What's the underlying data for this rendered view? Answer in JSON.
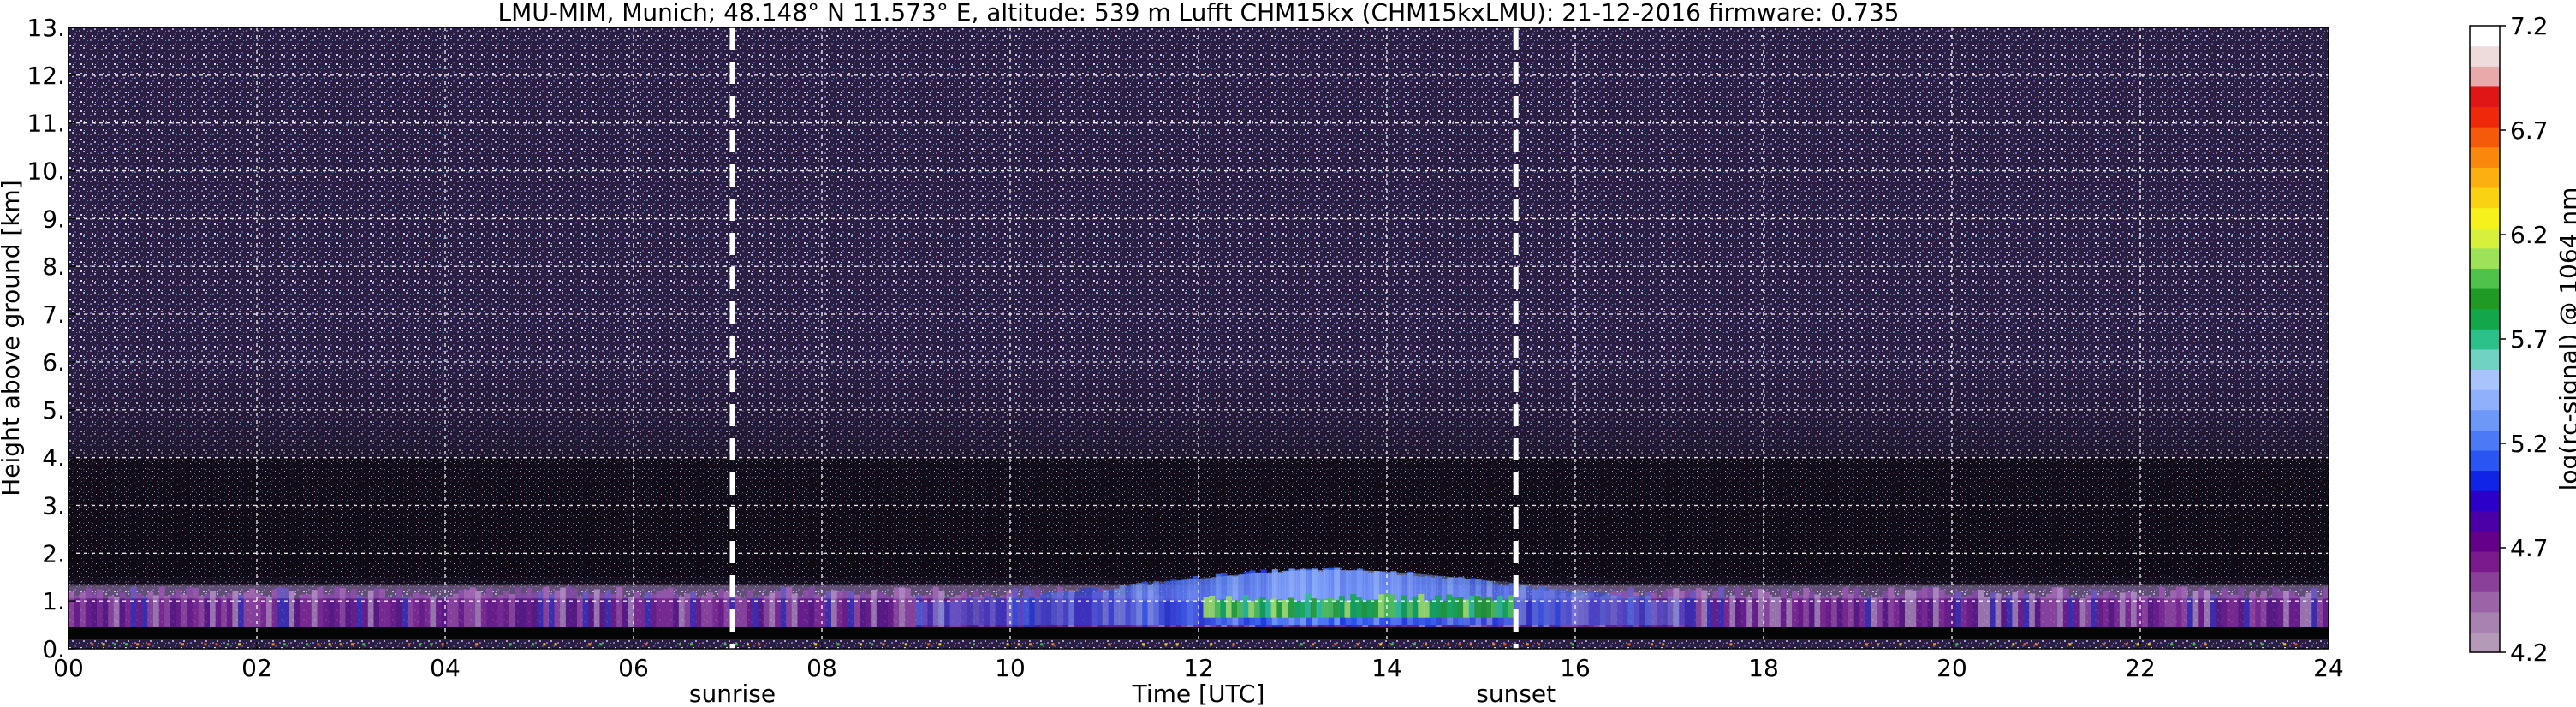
{
  "chart_data": {
    "type": "heatmap",
    "title": "LMU-MIM, Munich; 48.148° N 11.573° E, altitude: 539 m    Lufft CHM15kx (CHM15kxLMU): 21-12-2016    firmware: 0.735",
    "xlabel": "Time [UTC]",
    "ylabel": "Height above ground [km]",
    "xlim": [
      0,
      24
    ],
    "ylim": [
      0,
      13
    ],
    "x_ticks": [
      "00",
      "02",
      "04",
      "06",
      "08",
      "10",
      "12",
      "14",
      "16",
      "18",
      "20",
      "22",
      "24"
    ],
    "x_tick_values": [
      0,
      2,
      4,
      6,
      8,
      10,
      12,
      14,
      16,
      18,
      20,
      22,
      24
    ],
    "y_ticks": [
      "0.",
      "1.",
      "2.",
      "3.",
      "4.",
      "5.",
      "6.",
      "7.",
      "8.",
      "9.",
      "10.",
      "11.",
      "12.",
      "13."
    ],
    "y_tick_values": [
      0,
      1,
      2,
      3,
      4,
      5,
      6,
      7,
      8,
      9,
      10,
      11,
      12,
      13
    ],
    "grid": true,
    "annotations": [
      {
        "label": "sunrise",
        "x": 7.05
      },
      {
        "label": "sunset",
        "x": 15.37
      }
    ],
    "colorbar": {
      "label": "log(rc-signal) @ 1064 nm",
      "range": [
        4.2,
        7.2
      ],
      "ticks": [
        "4.2",
        "4.7",
        "5.2",
        "5.7",
        "6.2",
        "6.7",
        "7.2"
      ],
      "tick_values": [
        4.2,
        4.7,
        5.2,
        5.7,
        6.2,
        6.7,
        7.2
      ],
      "colors": [
        "#b49ab8",
        "#a883b1",
        "#9a64a6",
        "#8a3f98",
        "#7a1a8c",
        "#65008a",
        "#4a00a6",
        "#2c00c8",
        "#0f24e6",
        "#2a55f0",
        "#4c7af6",
        "#6e98f8",
        "#8fb0fa",
        "#a9c3fb",
        "#6fd2c2",
        "#2cc08a",
        "#12a84a",
        "#1f9b25",
        "#4fc24a",
        "#9ee25a",
        "#d6f03c",
        "#f6f01c",
        "#fad214",
        "#fbb010",
        "#f9880c",
        "#f55a0a",
        "#f0280a",
        "#e01616",
        "#e8a9ab",
        "#eedcdc",
        "#ffffff"
      ]
    },
    "layers": [
      {
        "feature": "noise background",
        "height_range_km": [
          1.5,
          13
        ],
        "x": [
          0,
          24
        ]
      },
      {
        "feature": "aerosol layer",
        "height_range_km": [
          0.5,
          1.3
        ],
        "x": [
          0,
          24
        ]
      },
      {
        "feature": "enhanced aerosol layer",
        "height_range_km": [
          0.5,
          1.6
        ],
        "x": [
          11.2,
          17.0
        ]
      },
      {
        "feature": "strong backscatter core",
        "height_range_km": [
          0.6,
          1.1
        ],
        "x": [
          12.0,
          15.3
        ]
      },
      {
        "feature": "low signal band",
        "height_range_km": [
          0.2,
          0.45
        ],
        "x": [
          0,
          24
        ]
      }
    ]
  }
}
